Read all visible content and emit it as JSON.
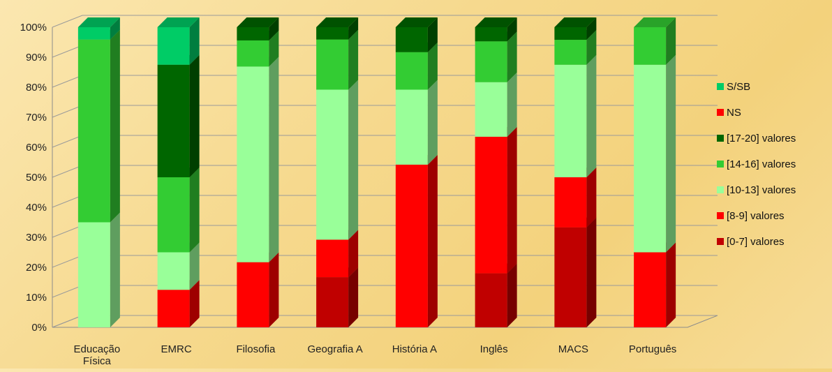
{
  "chart_data": {
    "type": "bar",
    "stacked": true,
    "percent": true,
    "three_d": true,
    "title": "",
    "xlabel": "",
    "ylabel": "",
    "ylim": [
      0,
      100
    ],
    "yticks": [
      "0%",
      "10%",
      "20%",
      "30%",
      "40%",
      "50%",
      "60%",
      "70%",
      "80%",
      "90%",
      "100%"
    ],
    "legend_position": "right",
    "categories": [
      "Educação Física",
      "EMRC",
      "Filosofia",
      "Geografia A",
      "História A",
      "Inglês",
      "MACS",
      "Português"
    ],
    "series": [
      {
        "name": "[0-7] valores",
        "color": "#c00000",
        "values": [
          0,
          0,
          0,
          16.7,
          0,
          18,
          33.3,
          0
        ]
      },
      {
        "name": "[8-9] valores",
        "color": "#ff0000",
        "values": [
          0,
          12.5,
          21.7,
          12.5,
          54.2,
          45.5,
          16.7,
          25
        ]
      },
      {
        "name": "[10-13] valores",
        "color": "#99ff99",
        "values": [
          35,
          12.5,
          65.2,
          50,
          25,
          18.2,
          37.5,
          62.5
        ]
      },
      {
        "name": "[14-16] valores",
        "color": "#33cc33",
        "values": [
          60.9,
          25,
          8.7,
          16.7,
          12.5,
          13.6,
          8.3,
          12.5
        ]
      },
      {
        "name": "[17-20] valores",
        "color": "#006600",
        "values": [
          0,
          37.5,
          4.4,
          4.1,
          8.3,
          4.7,
          4.2,
          0
        ]
      },
      {
        "name": "NS",
        "color": "#ff0000",
        "values": [
          0,
          0,
          0,
          0,
          0,
          0,
          0,
          0
        ]
      },
      {
        "name": "S/SB",
        "color": "#00cc66",
        "values": [
          4.1,
          12.5,
          0,
          0,
          0,
          0,
          0,
          0
        ]
      }
    ],
    "legend_order": [
      "S/SB",
      "NS",
      "[17-20] valores",
      "[14-16] valores",
      "[10-13] valores",
      "[8-9] valores",
      "[0-7] valores"
    ]
  }
}
